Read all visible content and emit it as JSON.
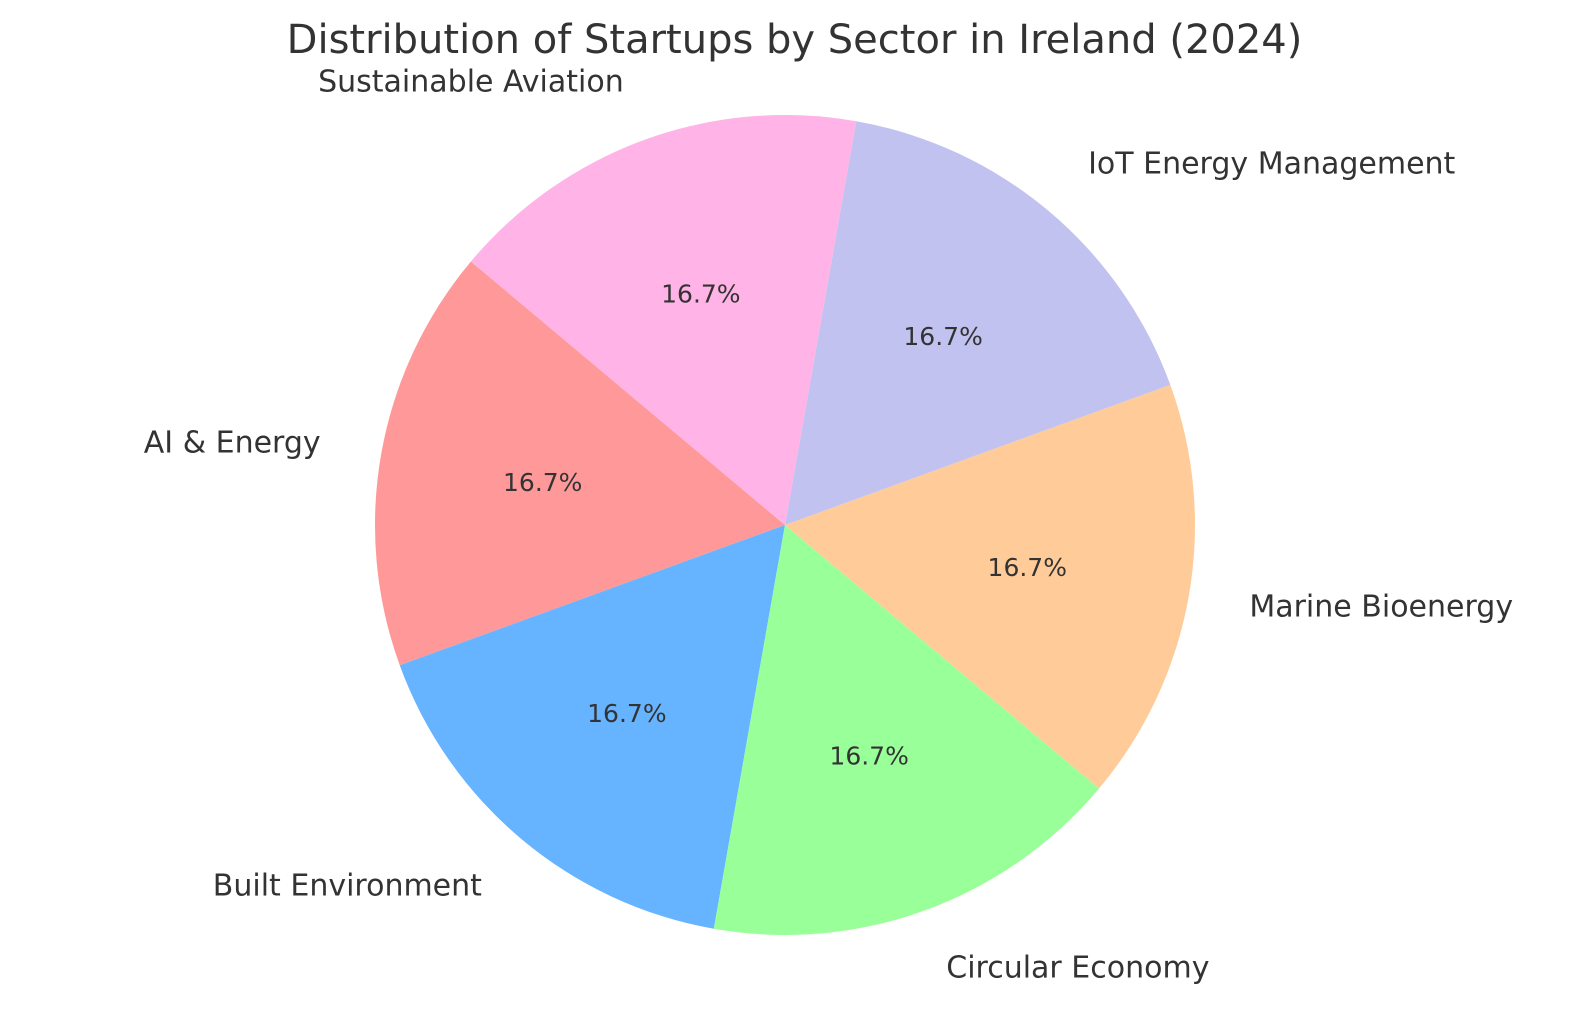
{
  "chart_data": {
    "type": "pie",
    "title": "Distribution of Startups by Sector in Ireland (2024)",
    "start_angle_deg": 140,
    "direction": "counterclockwise",
    "slices": [
      {
        "label": "AI & Energy",
        "value": 1,
        "percent_label": "16.7%",
        "color": "#ff9999"
      },
      {
        "label": "Built Environment",
        "value": 1,
        "percent_label": "16.7%",
        "color": "#66b3ff"
      },
      {
        "label": "Circular Economy",
        "value": 1,
        "percent_label": "16.7%",
        "color": "#99ff99"
      },
      {
        "label": "Marine Bioenergy",
        "value": 1,
        "percent_label": "16.7%",
        "color": "#ffcc99"
      },
      {
        "label": "IoT Energy Management",
        "value": 1,
        "percent_label": "16.7%",
        "color": "#c2c2f0"
      },
      {
        "label": "Sustainable Aviation",
        "value": 1,
        "percent_label": "16.7%",
        "color": "#ffb3e6"
      }
    ]
  }
}
